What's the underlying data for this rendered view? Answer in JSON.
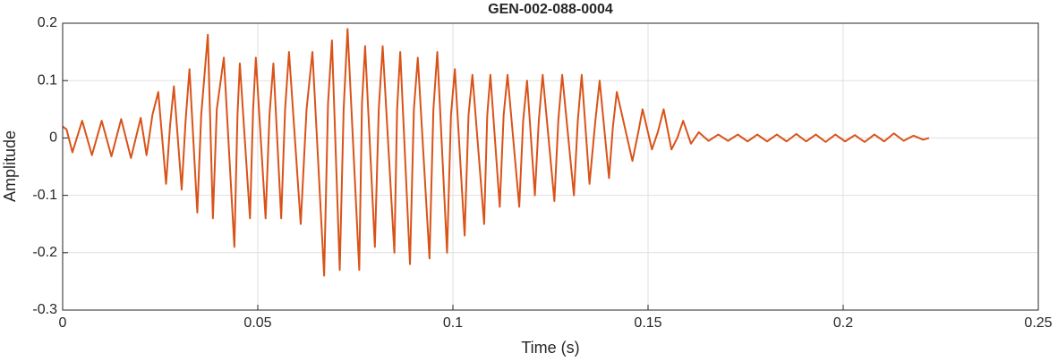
{
  "chart_data": {
    "type": "line",
    "title": "GEN-002-088-0004",
    "x_label": "Time (s)",
    "y_label": "Amplitude",
    "color": "#d95319",
    "grid": true,
    "xlim": [
      0,
      0.25
    ],
    "xticks": [
      0,
      0.05,
      0.1,
      0.15,
      0.2,
      0.25
    ],
    "ylim": [
      -0.3,
      0.2
    ],
    "yticks": [
      -0.3,
      -0.2,
      -0.1,
      0,
      0.1,
      0.2
    ],
    "x": [
      0,
      0.001,
      0.0025,
      0.005,
      0.0075,
      0.01,
      0.0125,
      0.015,
      0.0175,
      0.02,
      0.0215,
      0.023,
      0.0245,
      0.0265,
      0.0275,
      0.0285,
      0.0305,
      0.0315,
      0.0325,
      0.0345,
      0.0355,
      0.0372,
      0.0385,
      0.0395,
      0.0413,
      0.044,
      0.0448,
      0.0454,
      0.048,
      0.0488,
      0.0495,
      0.052,
      0.053,
      0.054,
      0.056,
      0.057,
      0.058,
      0.061,
      0.0625,
      0.064,
      0.067,
      0.068,
      0.069,
      0.071,
      0.072,
      0.073,
      0.076,
      0.0767,
      0.0775,
      0.08,
      0.081,
      0.082,
      0.085,
      0.0857,
      0.0865,
      0.089,
      0.09,
      0.091,
      0.094,
      0.095,
      0.096,
      0.0985,
      0.0995,
      0.1005,
      0.103,
      0.104,
      0.105,
      0.108,
      0.1088,
      0.1096,
      0.112,
      0.113,
      0.114,
      0.117,
      0.118,
      0.119,
      0.121,
      0.122,
      0.123,
      0.126,
      0.127,
      0.128,
      0.131,
      0.132,
      0.133,
      0.135,
      0.1365,
      0.1376,
      0.14,
      0.141,
      0.142,
      0.146,
      0.1475,
      0.1486,
      0.151,
      0.1525,
      0.154,
      0.156,
      0.1575,
      0.159,
      0.161,
      0.163,
      0.1655,
      0.168,
      0.1705,
      0.173,
      0.1755,
      0.178,
      0.1805,
      0.183,
      0.1855,
      0.188,
      0.1905,
      0.193,
      0.1955,
      0.198,
      0.2005,
      0.203,
      0.2055,
      0.208,
      0.2105,
      0.213,
      0.2155,
      0.218,
      0.2205,
      0.222
    ],
    "values": [
      0.02,
      0.015,
      -0.025,
      0.03,
      -0.03,
      0.03,
      -0.032,
      0.033,
      -0.035,
      0.035,
      -0.03,
      0.04,
      0.08,
      -0.08,
      0.02,
      0.09,
      -0.09,
      0.03,
      0.12,
      -0.13,
      0.04,
      0.18,
      -0.14,
      0.05,
      0.14,
      -0.19,
      0.04,
      0.13,
      -0.14,
      0.05,
      0.14,
      -0.14,
      0.04,
      0.13,
      -0.14,
      0.05,
      0.15,
      -0.15,
      0.05,
      0.15,
      -0.24,
      0.06,
      0.17,
      -0.23,
      0.05,
      0.19,
      -0.23,
      0.06,
      0.16,
      -0.19,
      0.05,
      0.16,
      -0.2,
      0.05,
      0.15,
      -0.22,
      0.05,
      0.14,
      -0.21,
      0.05,
      0.15,
      -0.2,
      0.04,
      0.12,
      -0.17,
      0.04,
      0.11,
      -0.15,
      0.04,
      0.11,
      -0.12,
      0.04,
      0.11,
      -0.12,
      0.03,
      0.1,
      -0.1,
      0.03,
      0.11,
      -0.11,
      0.03,
      0.11,
      -0.1,
      0.03,
      0.11,
      -0.08,
      0.03,
      0.1,
      -0.07,
      0.02,
      0.08,
      -0.04,
      0.01,
      0.05,
      -0.02,
      0.01,
      0.05,
      -0.02,
      0,
      0.03,
      -0.01,
      0.01,
      -0.005,
      0.006,
      -0.005,
      0.006,
      -0.006,
      0.006,
      -0.006,
      0.006,
      -0.006,
      0.007,
      -0.006,
      0.006,
      -0.007,
      0.006,
      -0.006,
      0.005,
      -0.007,
      0.006,
      -0.006,
      0.008,
      -0.005,
      0.004,
      -0.003,
      0
    ]
  }
}
